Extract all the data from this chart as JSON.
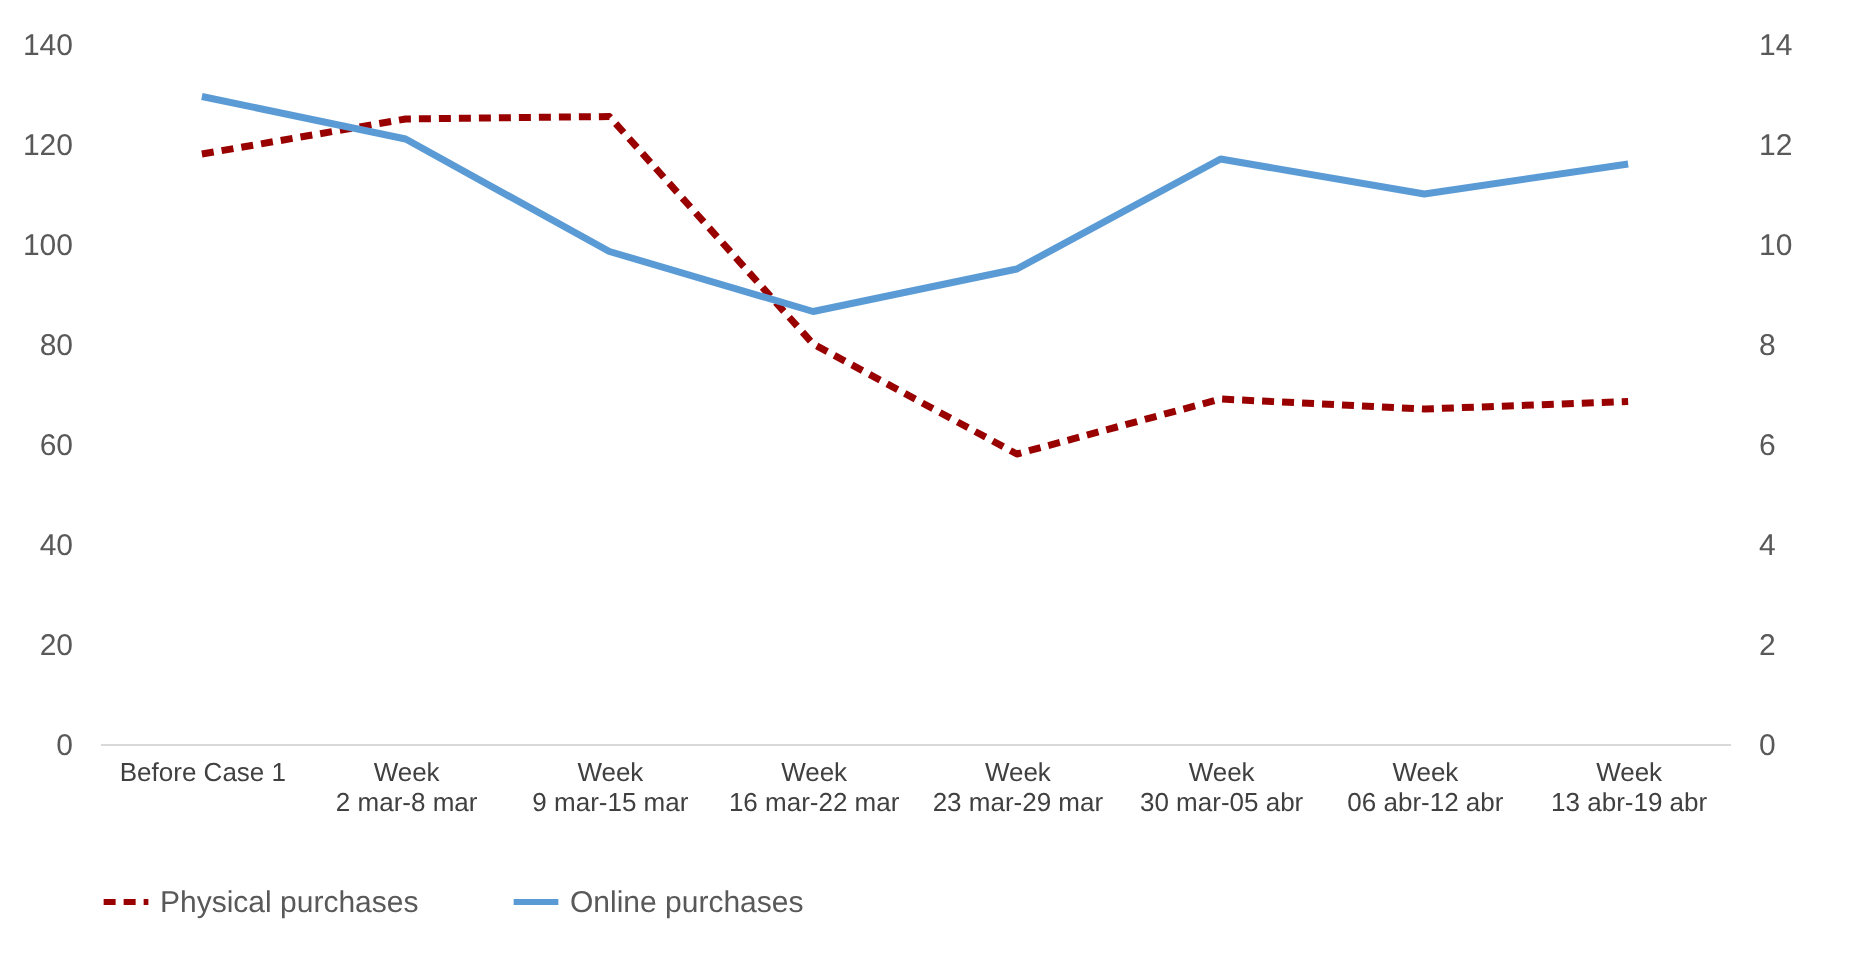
{
  "chart_data": {
    "type": "line",
    "categories": [
      "Before Case 1",
      "Week\n2 mar-8 mar",
      "Week\n9 mar-15 mar",
      "Week\n16 mar-22 mar",
      "Week\n23 mar-29 mar",
      "Week\n30 mar-05 abr",
      "Week\n06 abr-12 abr",
      "Week\n13 abr-19 abr"
    ],
    "series": [
      {
        "name": "Physical purchases",
        "color": "#990000",
        "line_style": "dashed",
        "values": [
          118,
          125,
          125.5,
          80,
          58,
          69,
          67,
          68.5
        ]
      },
      {
        "name": "Online purchases",
        "color": "#5b9bd5",
        "line_style": "solid",
        "axis": "y2",
        "values": [
          12.95,
          12.1,
          9.85,
          8.65,
          9.5,
          11.7,
          11.0,
          11.6
        ]
      }
    ],
    "ylim": [
      0,
      140
    ],
    "yticks": [
      0,
      20,
      40,
      60,
      80,
      100,
      120,
      140
    ],
    "y2lim": [
      0,
      14
    ],
    "y2ticks": [
      0,
      2,
      4,
      6,
      8,
      10,
      12,
      14
    ],
    "grid": false,
    "legend": "bottom",
    "marker": "none"
  }
}
